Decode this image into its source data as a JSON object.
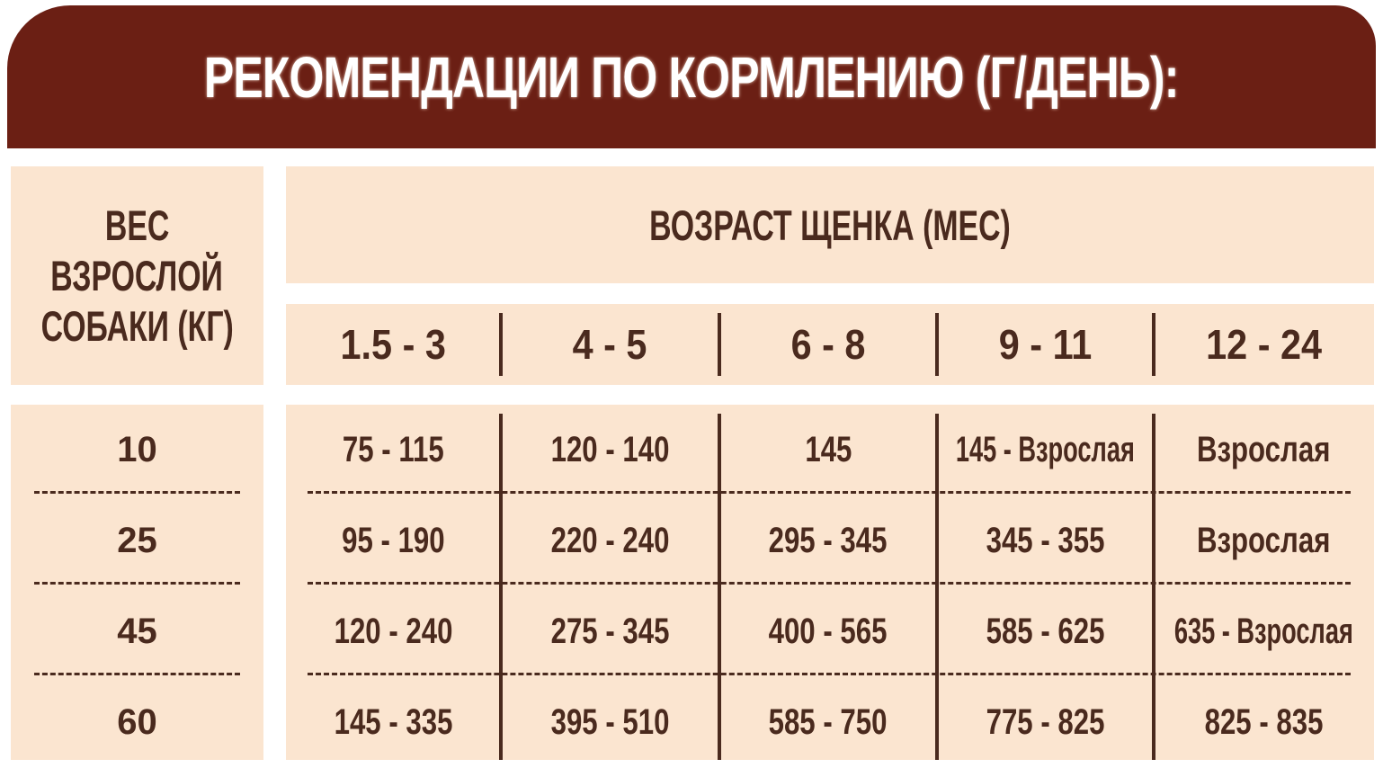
{
  "title": "РЕКОМЕНДАЦИИ ПО КОРМЛЕНИЮ (Г/ДЕНЬ):",
  "weight_header": [
    "ВЕС",
    "ВЗРОСЛОЙ",
    "СОБАКИ (КГ)"
  ],
  "age_header": "ВОЗРАСТ ЩЕНКА (МЕС)",
  "age_columns": [
    "1.5 - 3",
    "4 - 5",
    "6 - 8",
    "9 - 11",
    "12 - 24"
  ],
  "rows": [
    {
      "weight": "10",
      "values": [
        "75 - 115",
        "120 - 140",
        "145",
        "145 - Взрослая",
        "Взрослая"
      ]
    },
    {
      "weight": "25",
      "values": [
        "95 - 190",
        "220 - 240",
        "295 - 345",
        "345 - 355",
        "Взрослая"
      ]
    },
    {
      "weight": "45",
      "values": [
        "120 - 240",
        "275 - 345",
        "400 - 565",
        "585 - 625",
        "635 - Взрослая"
      ]
    },
    {
      "weight": "60",
      "values": [
        "145 - 335",
        "395 - 510",
        "585 - 750",
        "775 - 825",
        "825 - 835"
      ]
    }
  ],
  "colors": {
    "banner": "#6b1f14",
    "cell": "#fbe5d0",
    "text": "#4a2a1e"
  }
}
